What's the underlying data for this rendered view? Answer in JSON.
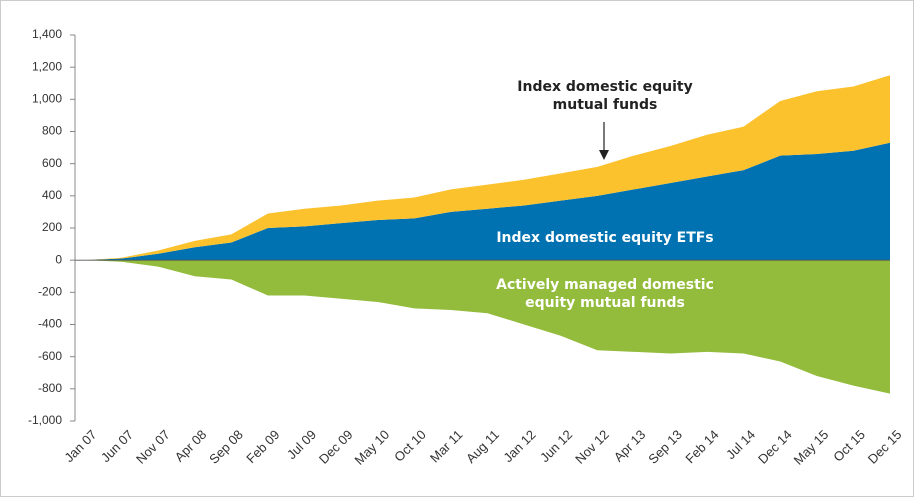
{
  "chart_data": {
    "type": "stacked_area",
    "categories": [
      "Jan 07",
      "Jun 07",
      "Nov 07",
      "Apr 08",
      "Sep 08",
      "Feb 09",
      "Jul 09",
      "Dec 09",
      "May 10",
      "Oct 10",
      "Mar 11",
      "Aug 11",
      "Jan 12",
      "Jun 12",
      "Nov 12",
      "Apr 13",
      "Sep 13",
      "Feb 14",
      "Jul 14",
      "Dec 14",
      "May 15",
      "Oct 15",
      "Dec 15"
    ],
    "series": [
      {
        "name": "Index domestic equity ETFs",
        "color": "#0072b1",
        "values": [
          0,
          10,
          40,
          80,
          110,
          200,
          210,
          230,
          250,
          260,
          300,
          320,
          340,
          370,
          400,
          440,
          480,
          520,
          560,
          650,
          660,
          680,
          730
        ]
      },
      {
        "name": "Index domestic equity mutual funds",
        "color": "#fbc22d",
        "values": [
          0,
          5,
          20,
          40,
          50,
          90,
          110,
          110,
          120,
          130,
          140,
          150,
          160,
          170,
          180,
          210,
          230,
          260,
          270,
          340,
          390,
          400,
          420
        ]
      },
      {
        "name": "Actively managed domestic equity mutual funds",
        "color": "#93bb3c",
        "values": [
          0,
          -10,
          -40,
          -100,
          -120,
          -220,
          -220,
          -240,
          -260,
          -300,
          -310,
          -330,
          -400,
          -470,
          -560,
          -570,
          -580,
          -570,
          -580,
          -630,
          -720,
          -780,
          -830
        ]
      }
    ],
    "ylim": [
      -1000,
      1400
    ],
    "yticks": [
      {
        "value": -1000,
        "label": "-1,000"
      },
      -800,
      -600,
      -400,
      -200,
      0,
      200,
      400,
      600,
      800,
      {
        "value": 1000,
        "label": "1,000"
      },
      {
        "value": 1200,
        "label": "1,200"
      },
      {
        "value": 1400,
        "label": "1,400"
      }
    ]
  }
}
